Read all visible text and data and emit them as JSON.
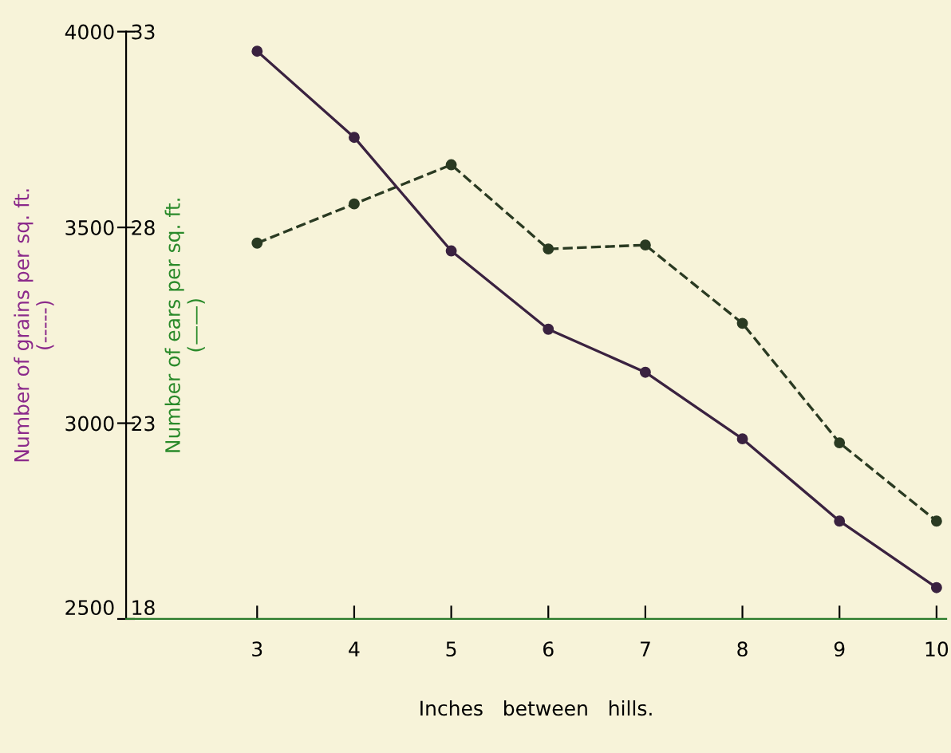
{
  "chart_data": {
    "type": "line",
    "xlabel": "Inches   between   hills.",
    "ylabel": "Number of grains per sq. ft.\n(-----)",
    "y2label": "Number of ears per sq. ft.\n(——)",
    "x": [
      3,
      4,
      5,
      6,
      7,
      8,
      9,
      10
    ],
    "xlim": [
      1.65,
      10.1
    ],
    "xticks": [
      3,
      4,
      5,
      6,
      7,
      8,
      9,
      10
    ],
    "ylim": [
      2500,
      4000
    ],
    "yticks": [
      2500,
      3000,
      3500,
      4000
    ],
    "y2lim": [
      18,
      33
    ],
    "y2ticks": [
      18,
      23,
      28,
      33
    ],
    "marker": "circle",
    "grid": false,
    "series": [
      {
        "color": "#2a3a22",
        "line_style": "dashed",
        "values": [
          3460,
          3560,
          3660,
          3445,
          3455,
          3255,
          2950,
          2750
        ]
      },
      {
        "color": "#3a2240",
        "line_style": "solid",
        "axis": "y2",
        "values": [
          32.5,
          30.3,
          27.4,
          25.4,
          24.3,
          22.6,
          20.5,
          18.8
        ]
      }
    ]
  }
}
